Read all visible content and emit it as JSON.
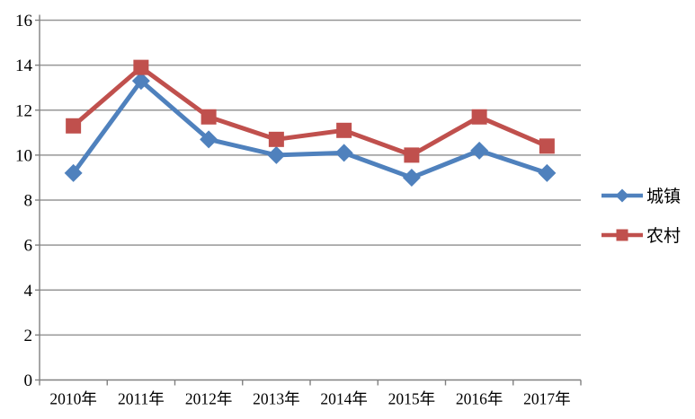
{
  "chart_data": {
    "type": "line",
    "title": "",
    "xlabel": "",
    "ylabel": "",
    "categories": [
      "2010年",
      "2011年",
      "2012年",
      "2013年",
      "2014年",
      "2015年",
      "2016年",
      "2017年"
    ],
    "series": [
      {
        "name": "城镇",
        "color": "#4F81BD",
        "marker": "diamond",
        "values": [
          9.2,
          13.3,
          10.7,
          10.0,
          10.1,
          9.0,
          10.2,
          9.2
        ]
      },
      {
        "name": "农村",
        "color": "#C0504D",
        "marker": "square",
        "values": [
          11.3,
          13.9,
          11.7,
          10.7,
          11.1,
          10.0,
          11.7,
          10.4
        ]
      }
    ],
    "ylim": [
      0,
      16
    ],
    "ytick_step": 2,
    "ytick_labels": [
      "0",
      "2",
      "4",
      "6",
      "8",
      "10",
      "12",
      "14",
      "16"
    ],
    "grid": true,
    "legend_position": "right"
  },
  "colors": {
    "series_urban": "#4F81BD",
    "series_rural": "#C0504D",
    "gridline": "#969696",
    "axis": "#808080",
    "text": "#000000",
    "background": "#FFFFFF"
  }
}
